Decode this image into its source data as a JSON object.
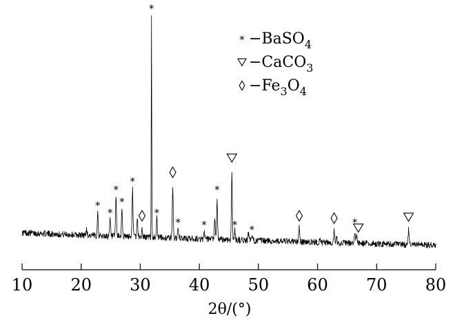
{
  "chart_data": {
    "type": "line",
    "title": "",
    "xlabel": "2θ/(°)",
    "ylabel": "",
    "xlim": [
      10,
      80
    ],
    "xticks": [
      10,
      20,
      30,
      40,
      50,
      60,
      70,
      80
    ],
    "ylim": [
      0,
      100
    ],
    "grid": false,
    "legend_position": "top-center",
    "legend": [
      {
        "symbol": "*",
        "phase": "BaSO",
        "sub": "4"
      },
      {
        "symbol": "▽",
        "phase": "CaCO",
        "sub": "3"
      },
      {
        "symbol": "◇",
        "phase": "Fe",
        "sub": "3",
        "phase2": "O",
        "sub2": "4"
      }
    ],
    "baseline": [
      [
        10,
        6.5
      ],
      [
        15,
        6.0
      ],
      [
        20,
        5.5
      ],
      [
        25,
        5.0
      ],
      [
        30,
        4.8
      ],
      [
        35,
        4.3
      ],
      [
        40,
        3.9
      ],
      [
        45,
        3.6
      ],
      [
        50,
        3.2
      ],
      [
        55,
        2.9
      ],
      [
        60,
        2.5
      ],
      [
        65,
        2.2
      ],
      [
        70,
        1.9
      ],
      [
        75,
        1.6
      ],
      [
        80,
        1.4
      ]
    ],
    "noise_amplitude": 1.3,
    "peaks": [
      {
        "x": 20.9,
        "h": 3
      },
      {
        "x": 22.8,
        "h": 10
      },
      {
        "x": 24.9,
        "h": 7
      },
      {
        "x": 25.9,
        "h": 17
      },
      {
        "x": 26.9,
        "h": 12
      },
      {
        "x": 28.7,
        "h": 20
      },
      {
        "x": 29.5,
        "h": 8
      },
      {
        "x": 30.3,
        "h": 3
      },
      {
        "x": 31.9,
        "h": 92
      },
      {
        "x": 32.8,
        "h": 9
      },
      {
        "x": 35.5,
        "h": 22
      },
      {
        "x": 36.4,
        "h": 4
      },
      {
        "x": 40.8,
        "h": 3
      },
      {
        "x": 42.6,
        "h": 8
      },
      {
        "x": 43.0,
        "h": 16
      },
      {
        "x": 45.5,
        "h": 27
      },
      {
        "x": 46.0,
        "h": 4
      },
      {
        "x": 48.3,
        "h": 3
      },
      {
        "x": 48.9,
        "h": 2
      },
      {
        "x": 56.9,
        "h": 6
      },
      {
        "x": 60.4,
        "h": 2
      },
      {
        "x": 62.8,
        "h": 5
      },
      {
        "x": 63.2,
        "h": 3
      },
      {
        "x": 66.3,
        "h": 4
      },
      {
        "x": 66.6,
        "h": 4
      },
      {
        "x": 75.4,
        "h": 6
      }
    ],
    "markers": [
      {
        "symbol": "*",
        "x": 22.8,
        "y": 18.5
      },
      {
        "symbol": "*",
        "x": 24.9,
        "y": 15.5
      },
      {
        "symbol": "*",
        "x": 25.9,
        "y": 25
      },
      {
        "symbol": "*",
        "x": 26.9,
        "y": 20
      },
      {
        "symbol": "*",
        "x": 28.7,
        "y": 28.5
      },
      {
        "symbol": "◇",
        "x": 30.3,
        "y": 13.5
      },
      {
        "symbol": "*",
        "x": 31.9,
        "y": 100
      },
      {
        "symbol": "*",
        "x": 32.8,
        "y": 15.5
      },
      {
        "symbol": "◇",
        "x": 35.5,
        "y": 31.5
      },
      {
        "symbol": "*",
        "x": 36.4,
        "y": 11.5
      },
      {
        "symbol": "*",
        "x": 40.8,
        "y": 10.5
      },
      {
        "symbol": "*",
        "x": 43.0,
        "y": 25
      },
      {
        "symbol": "▽",
        "x": 45.5,
        "y": 37.5
      },
      {
        "symbol": "*",
        "x": 46.0,
        "y": 10.5
      },
      {
        "symbol": "*",
        "x": 48.9,
        "y": 8.5
      },
      {
        "symbol": "◇",
        "x": 56.9,
        "y": 13.5
      },
      {
        "symbol": "◇",
        "x": 62.8,
        "y": 12.5
      },
      {
        "symbol": "*",
        "x": 66.3,
        "y": 11.5
      },
      {
        "symbol": "▽",
        "x": 66.9,
        "y": 8.5
      },
      {
        "symbol": "▽",
        "x": 75.4,
        "y": 13
      }
    ]
  }
}
